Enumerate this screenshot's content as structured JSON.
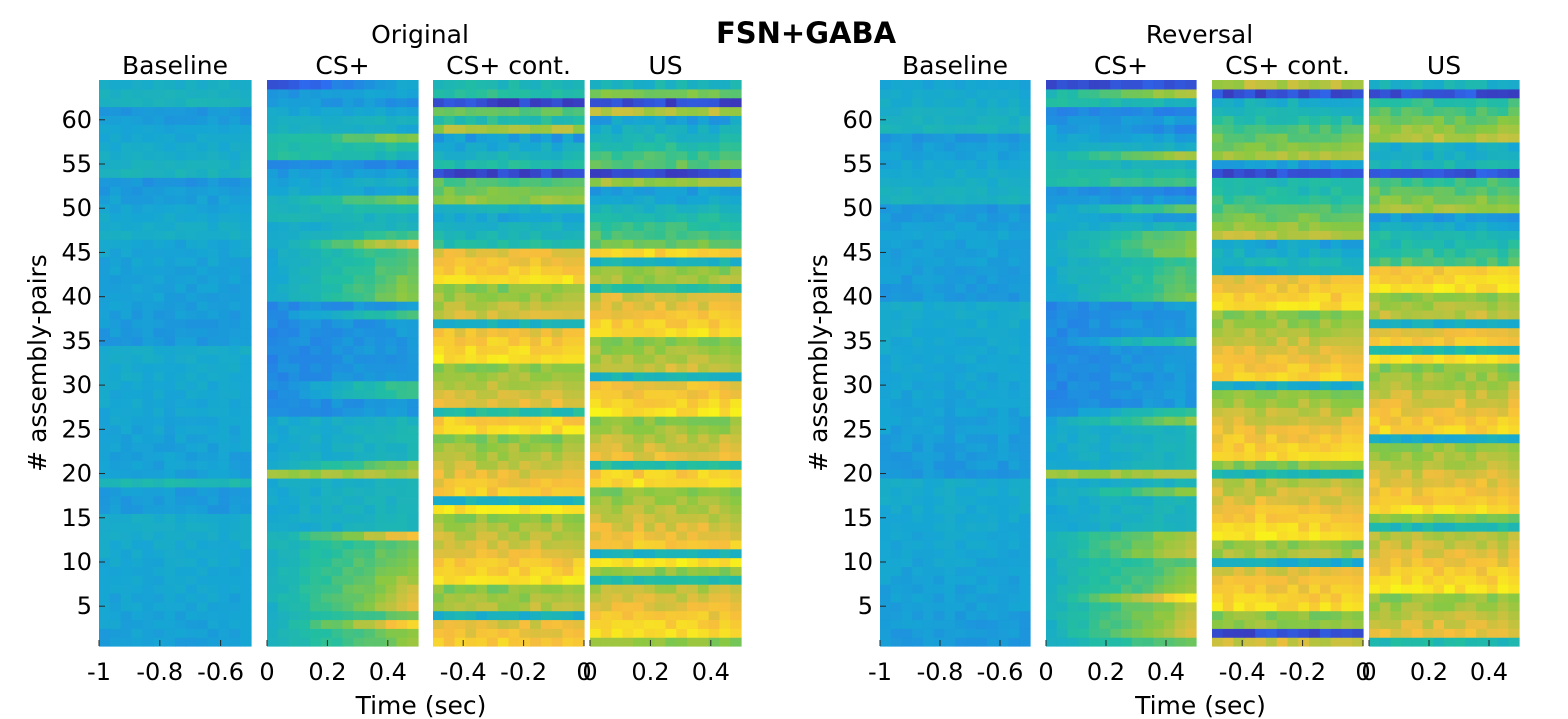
{
  "figure": {
    "title": "FSN+GABA",
    "ylabel": "# assembly-pairs",
    "xlabel": "Time (sec)"
  },
  "chart_data": {
    "type": "heatmap",
    "title": "FSN+GABA",
    "ylabel": "# assembly-pairs",
    "xlabel": "Time (sec)",
    "n_rows": 64,
    "ylim": [
      1,
      64
    ],
    "yticks": [
      5,
      10,
      15,
      20,
      25,
      30,
      35,
      40,
      45,
      50,
      55,
      60
    ],
    "colormap": "parula",
    "colormap_colors": [
      "#3e26a8",
      "#2d6cf0",
      "#16a6d4",
      "#23bfa0",
      "#8bc841",
      "#f7bd3d",
      "#f8f915"
    ],
    "segments": [
      {
        "name": "Baseline",
        "xlim": [
          -1,
          -0.5
        ],
        "ticks": [
          -1,
          -0.8,
          -0.6
        ]
      },
      {
        "name": "CS+",
        "xlim": [
          0,
          0.5
        ],
        "ticks": [
          0,
          0.2,
          0.4
        ]
      },
      {
        "name": "CS+ cont.",
        "xlim": [
          -0.5,
          0
        ],
        "ticks": [
          -0.4,
          -0.2,
          0
        ]
      },
      {
        "name": "US",
        "xlim": [
          0,
          0.5
        ],
        "ticks": [
          0,
          0.2,
          0.4
        ]
      }
    ],
    "panels": [
      {
        "title": "Original",
        "segment_intensity": {
          "Baseline": "uniform low (teal), slightly lower rows 46-64",
          "CS+": "rising toward end for rows 1-13 and 40-47; low rows 27-40; rows 49-64 mixed/low",
          "CS+ cont.": "high (yellow) for rows 1-45; mixed for rows 46-64 with minima near rows 54 and 62",
          "US": "high for most rows 1-45; mixed rows 46-64"
        }
      },
      {
        "title": "Reversal",
        "segment_intensity": {
          "Baseline": "uniform low (teal)",
          "CS+": "rising toward end for rows 1-8; moderate elsewhere; minimum near row 64",
          "CS+ cont.": "high for rows 1-43; mixed rows 44-64 with minima near rows 2, 54 and 63",
          "US": "high for most rows 1-43; mixed rows 44-64"
        }
      }
    ]
  }
}
